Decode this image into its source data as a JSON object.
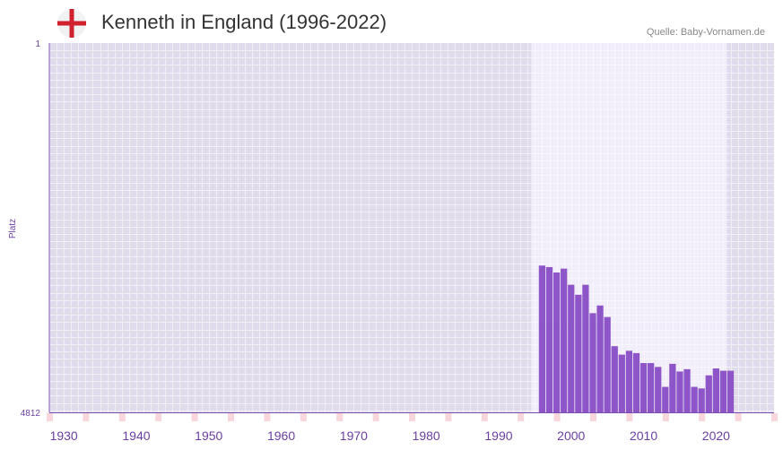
{
  "header": {
    "title": "Kenneth in England (1996-2022)",
    "source": "Quelle: Baby-Vornamen.de"
  },
  "colors": {
    "bar": "#8e55c8",
    "grid_bg": "#e1dcec",
    "highlight_bg": "#f1edfa",
    "axis_text": "#6b3fa0",
    "tick_mark": "#e06070",
    "tick_mark_light": "#f7d6dc",
    "flag_red": "#d0202e"
  },
  "chart_data": {
    "type": "bar",
    "title": "Kenneth in England (1996-2022)",
    "ylabel": "Platz",
    "xlabel": "",
    "y_inverted": true,
    "ylim": [
      1,
      4812
    ],
    "y_tick_labels": [
      "1",
      "4812"
    ],
    "xlim": [
      1928,
      2028
    ],
    "x_tick_values": [
      1930,
      1940,
      1950,
      1960,
      1970,
      1980,
      1990,
      2000,
      2010,
      2020
    ],
    "x_tick_labels": [
      "1930",
      "1940",
      "1950",
      "1960",
      "1970",
      "1980",
      "1990",
      "2000",
      "2010",
      "2020"
    ],
    "highlight_range": [
      1994.5,
      2021.5
    ],
    "x": [
      1996,
      1997,
      1998,
      1999,
      2000,
      2001,
      2002,
      2003,
      2004,
      2005,
      2006,
      2007,
      2008,
      2009,
      2010,
      2011,
      2012,
      2013,
      2014,
      2015,
      2016,
      2017,
      2018,
      2019,
      2020,
      2021,
      2022
    ],
    "values": [
      2900,
      2920,
      2990,
      2940,
      3150,
      3280,
      3150,
      3520,
      3420,
      3570,
      3950,
      4060,
      4010,
      4040,
      4170,
      4170,
      4220,
      4480,
      4180,
      4280,
      4250,
      4480,
      4500,
      4330,
      4240,
      4270,
      4270
    ]
  }
}
